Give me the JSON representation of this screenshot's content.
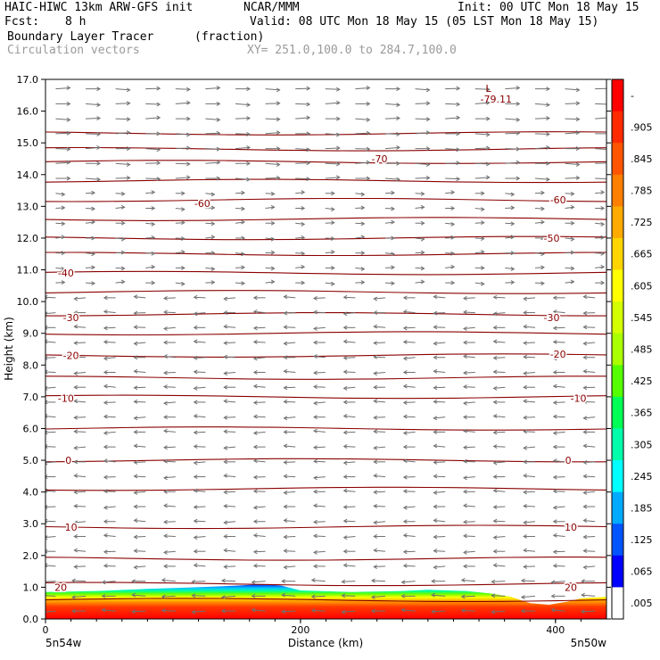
{
  "header": {
    "model": "HAIC-HIWC 13km ARW-GFS init",
    "org": "NCAR/MMM",
    "init": "Init: 00 UTC Mon 18 May 15",
    "fcst_label": "Fcst:",
    "fcst_value": "8 h",
    "valid": "Valid: 08 UTC Mon 18 May 15 (05 LST Mon 18 May 15)",
    "field": "Boundary Layer Tracer",
    "field_units": "(fraction)",
    "vectors": "Circulation vectors",
    "xy": "XY= 251.0,100.0 to 284.7,100.0"
  },
  "chart_data": {
    "type": "heatmap",
    "ylabel": "Height (km)",
    "xlabel": "Distance (km)",
    "xlim": [
      0,
      440
    ],
    "ylim": [
      0,
      17
    ],
    "y_ticks": [
      "0.0",
      "1.0",
      "2.0",
      "3.0",
      "4.0",
      "5.0",
      "6.0",
      "7.0",
      "8.0",
      "9.0",
      "10.0",
      "11.0",
      "12.0",
      "13.0",
      "14.0",
      "15.0",
      "16.0",
      "17.0"
    ],
    "x_ticks": [
      {
        "label": "0",
        "value": 0
      },
      {
        "label": "200",
        "value": 200
      },
      {
        "label": "400",
        "value": 400
      }
    ],
    "x_end_labels": {
      "left": "5n54w",
      "right": "5n50w"
    },
    "tracer_top_km": [
      [
        0,
        0.85
      ],
      [
        40,
        0.88
      ],
      [
        80,
        0.95
      ],
      [
        120,
        1.0
      ],
      [
        150,
        1.05
      ],
      [
        170,
        1.1
      ],
      [
        185,
        1.05
      ],
      [
        200,
        0.9
      ],
      [
        240,
        0.85
      ],
      [
        280,
        0.88
      ],
      [
        300,
        0.92
      ],
      [
        330,
        0.88
      ],
      [
        350,
        0.8
      ],
      [
        365,
        0.7
      ],
      [
        380,
        0.5
      ],
      [
        395,
        0.45
      ],
      [
        410,
        0.55
      ],
      [
        420,
        0.65
      ],
      [
        440,
        0.7
      ]
    ],
    "isotherms_km": [
      0.6,
      1.1,
      1.9,
      2.9,
      4.1,
      5.0,
      6.0,
      7.0,
      7.6,
      8.3,
      9.0,
      9.6,
      10.3,
      10.9,
      11.5,
      12.0,
      12.6,
      13.2,
      13.8,
      14.4,
      14.8,
      15.3
    ],
    "contour_labels": [
      {
        "text": "20",
        "x": 12,
        "y": 1.0
      },
      {
        "text": "20",
        "x": 412,
        "y": 1.0
      },
      {
        "text": "10",
        "x": 20,
        "y": 2.9
      },
      {
        "text": "10",
        "x": 412,
        "y": 2.9
      },
      {
        "text": "0",
        "x": 18,
        "y": 5.0
      },
      {
        "text": "0",
        "x": 410,
        "y": 5.0
      },
      {
        "text": "-10",
        "x": 16,
        "y": 6.95
      },
      {
        "text": "-10",
        "x": 418,
        "y": 6.95
      },
      {
        "text": "-20",
        "x": 20,
        "y": 8.3
      },
      {
        "text": "-20",
        "x": 402,
        "y": 8.35
      },
      {
        "text": "-30",
        "x": 20,
        "y": 9.5
      },
      {
        "text": "-30",
        "x": 397,
        "y": 9.5
      },
      {
        "text": "-40",
        "x": 16,
        "y": 10.9
      },
      {
        "text": "-50",
        "x": 397,
        "y": 12.0
      },
      {
        "text": "-60",
        "x": 123,
        "y": 13.1
      },
      {
        "text": "-60",
        "x": 402,
        "y": 13.2
      },
      {
        "text": "-70",
        "x": 262,
        "y": 14.5
      }
    ],
    "min_label": {
      "mark": "L",
      "value": "-79.11",
      "x": 355,
      "y": 16.6
    },
    "colorbar_labels": [
      "-",
      ".905",
      ".845",
      ".785",
      ".725",
      ".665",
      ".605",
      ".545",
      ".485",
      ".425",
      ".365",
      ".305",
      ".245",
      ".185",
      ".125",
      ".065",
      ".005"
    ],
    "colorbar_colors": [
      "#ff0000",
      "#ff2a00",
      "#ff5500",
      "#ff7f00",
      "#ffaa00",
      "#ffd400",
      "#ffff00",
      "#d4ff00",
      "#aaff00",
      "#55ff00",
      "#00ff55",
      "#00ffaa",
      "#00ffff",
      "#00aaff",
      "#0055ff",
      "#0000ff",
      "#ffffff"
    ]
  }
}
